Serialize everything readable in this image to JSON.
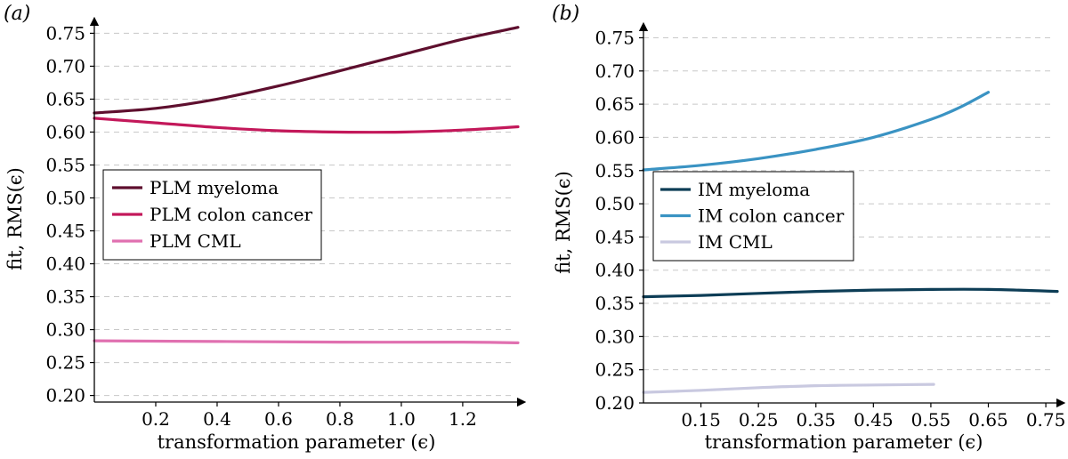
{
  "chart_data": [
    {
      "panel_label": "(a)",
      "type": "line",
      "xlabel": "transformation parameter (ϵ)",
      "ylabel": "fit, RMS(ϵ)",
      "xlim": [
        0.0,
        1.38
      ],
      "ylim": [
        0.19,
        0.76
      ],
      "xticks": [
        0.2,
        0.4,
        0.6,
        0.8,
        1.0,
        1.2
      ],
      "xtick_labels": [
        "0.2",
        "0.4",
        "0.6",
        "0.8",
        "1.0",
        "1.2"
      ],
      "yticks": [
        0.2,
        0.25,
        0.3,
        0.35,
        0.4,
        0.45,
        0.5,
        0.55,
        0.6,
        0.65,
        0.7,
        0.75
      ],
      "ytick_labels": [
        "0.20",
        "0.25",
        "0.30",
        "0.35",
        "0.40",
        "0.45",
        "0.50",
        "0.55",
        "0.60",
        "0.65",
        "0.70",
        "0.75"
      ],
      "grid": "horizontal dashed",
      "legend_position": "middle-left",
      "series": [
        {
          "name": "PLM myeloma",
          "color": "#5e0f2e",
          "x": [
            0.0,
            0.2,
            0.4,
            0.6,
            0.8,
            1.0,
            1.2,
            1.38
          ],
          "y": [
            0.629,
            0.636,
            0.65,
            0.67,
            0.693,
            0.717,
            0.741,
            0.759
          ]
        },
        {
          "name": "PLM colon cancer",
          "color": "#c3185a",
          "x": [
            0.0,
            0.2,
            0.4,
            0.6,
            0.8,
            1.0,
            1.2,
            1.38
          ],
          "y": [
            0.621,
            0.614,
            0.607,
            0.602,
            0.6,
            0.6,
            0.603,
            0.608
          ]
        },
        {
          "name": "PLM CML",
          "color": "#e070b0",
          "x": [
            0.0,
            0.4,
            0.8,
            1.2,
            1.38
          ],
          "y": [
            0.283,
            0.282,
            0.281,
            0.281,
            0.28
          ]
        }
      ]
    },
    {
      "panel_label": "(b)",
      "type": "line",
      "xlabel": "transformation parameter (ϵ)",
      "ylabel": "fit, RMS(ϵ)",
      "xlim": [
        0.05,
        0.77
      ],
      "ylim": [
        0.2,
        0.76
      ],
      "xticks": [
        0.15,
        0.25,
        0.35,
        0.45,
        0.55,
        0.65,
        0.75
      ],
      "xtick_labels": [
        "0.15",
        "0.25",
        "0.35",
        "0.45",
        "0.55",
        "0.65",
        "0.75"
      ],
      "yticks": [
        0.2,
        0.25,
        0.3,
        0.35,
        0.4,
        0.45,
        0.5,
        0.55,
        0.6,
        0.65,
        0.7,
        0.75
      ],
      "ytick_labels": [
        "0.20",
        "0.25",
        "0.30",
        "0.35",
        "0.40",
        "0.45",
        "0.50",
        "0.55",
        "0.60",
        "0.65",
        "0.70",
        "0.75"
      ],
      "grid": "horizontal dashed",
      "legend_position": "middle-left",
      "series": [
        {
          "name": "IM myeloma",
          "color": "#0d3d56",
          "x": [
            0.05,
            0.15,
            0.25,
            0.35,
            0.45,
            0.55,
            0.65,
            0.77
          ],
          "y": [
            0.36,
            0.362,
            0.365,
            0.368,
            0.37,
            0.371,
            0.371,
            0.368
          ]
        },
        {
          "name": "IM colon cancer",
          "color": "#3a93c3",
          "x": [
            0.05,
            0.15,
            0.25,
            0.35,
            0.45,
            0.55,
            0.6,
            0.65
          ],
          "y": [
            0.551,
            0.558,
            0.568,
            0.582,
            0.6,
            0.627,
            0.645,
            0.668
          ]
        },
        {
          "name": "IM CML",
          "color": "#c9c9e0",
          "x": [
            0.05,
            0.15,
            0.25,
            0.35,
            0.45,
            0.555
          ],
          "y": [
            0.216,
            0.219,
            0.223,
            0.226,
            0.227,
            0.228
          ]
        }
      ]
    }
  ]
}
